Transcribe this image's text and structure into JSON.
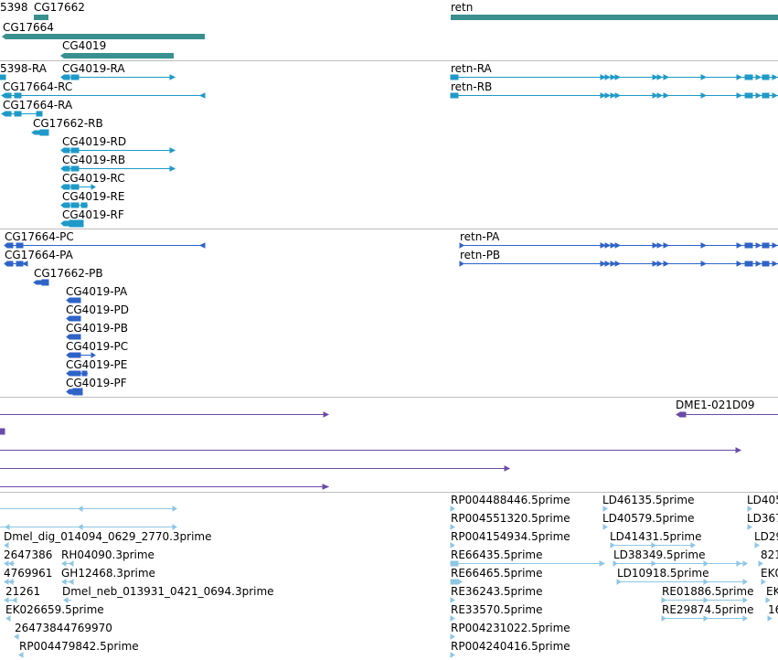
{
  "colors": {
    "gene": "#3a8f8f",
    "transcript": "#1e9ac8",
    "protein": "#2f63c8",
    "clone": "#6b4ba8",
    "est": "#8ec6e4",
    "divider": "#bdbdbd"
  },
  "tracks": {
    "genes": {
      "labels": [
        "5398",
        "CG17662",
        "CG17664",
        "CG4019",
        "retn"
      ]
    },
    "transcripts": {
      "labels": [
        "5398-RA",
        "CG4019-RA",
        "CG17664-RC",
        "CG17664-RA",
        "CG17662-RB",
        "CG4019-RD",
        "CG4019-RB",
        "CG4019-RC",
        "CG4019-RE",
        "CG4019-RF",
        "retn-RA",
        "retn-RB"
      ]
    },
    "proteins": {
      "labels": [
        "CG17664-PC",
        "CG17664-PA",
        "CG17662-PB",
        "CG4019-PA",
        "CG4019-PD",
        "CG4019-PB",
        "CG4019-PC",
        "CG4019-PE",
        "CG4019-PF",
        "retn-PA",
        "retn-PB"
      ]
    },
    "clones": {
      "labels": [
        "DME1-021D09"
      ]
    },
    "ests": {
      "labels": [
        "Dmel_dig_014094_0629_2770.3prime",
        "2647386",
        "RH04090.3prime",
        "4769961",
        "GH12468.3prime",
        "21261",
        "Dmel_neb_013931_0421_0694.3prime",
        "EK026659.5prime",
        "26473844769970",
        "RP004479842.5prime",
        "RP004488446.5prime",
        "RP004551320.5prime",
        "RP004154934.5prime",
        "RE66435.5prime",
        "RE66465.5prime",
        "RE36243.5prime",
        "RE33570.5prime",
        "RP004231022.5prime",
        "RP004240416.5prime",
        "LD46135.5prime",
        "LD40579.5prime",
        "LD41431.5prime",
        "LD38349.5prime",
        "LD10918.5prime",
        "RE01886.5prime",
        "RE29874.5prime",
        "LD405",
        "LD367",
        "LD29",
        "821",
        "EK0",
        "EK",
        "16"
      ]
    }
  }
}
